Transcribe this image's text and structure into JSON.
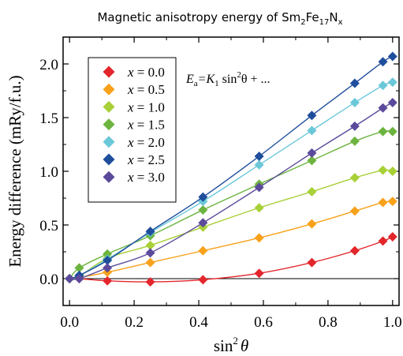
{
  "chart_data": {
    "type": "line",
    "title": {
      "prefix": "Magnetic anisotropy energy of Sm",
      "sub1": "2",
      "mid1": "Fe",
      "sub2": "17",
      "mid2": "N",
      "sub3": "x"
    },
    "xlabel": {
      "main": "sin",
      "sup": "2",
      "var": "θ"
    },
    "ylabel": "Energy difference (mRy/f.u.)",
    "annotation": {
      "lhs": "E",
      "lhs_sub": "a",
      "eq": "=K",
      "k_sub": "1",
      "rhs": " sin",
      "rhs_sup": "2",
      "tail": "θ + ..."
    },
    "xlim": [
      -0.02,
      1.02
    ],
    "ylim": [
      -0.25,
      2.25
    ],
    "xticks": [
      0.0,
      0.2,
      0.4,
      0.6,
      0.8,
      1.0
    ],
    "xtick_labels": [
      "0.0",
      "0.2",
      "0.4",
      "0.6",
      "0.8",
      "1.0"
    ],
    "yticks": [
      0.0,
      0.5,
      1.0,
      1.5,
      2.0
    ],
    "ytick_labels": [
      "0.0",
      "0.5",
      "1.0",
      "1.5",
      "2.0"
    ],
    "grid": false,
    "legend_position": "top-left",
    "zero_line": true,
    "x": [
      0.0,
      0.03,
      0.117,
      0.25,
      0.413,
      0.587,
      0.75,
      0.883,
      0.97,
      1.0
    ],
    "series": [
      {
        "name": "x = 0.0",
        "label_var": "x",
        "label_val": "= 0.0",
        "color": "#e3262b",
        "values": [
          0.0,
          0.0,
          -0.02,
          -0.03,
          -0.01,
          0.05,
          0.15,
          0.26,
          0.35,
          0.39
        ]
      },
      {
        "name": "x = 0.5",
        "label_var": "x",
        "label_val": "= 0.5",
        "color": "#f8a11b",
        "values": [
          0.0,
          0.01,
          0.06,
          0.15,
          0.26,
          0.38,
          0.51,
          0.63,
          0.71,
          0.72
        ]
      },
      {
        "name": "x = 1.0",
        "label_var": "x",
        "label_val": "= 1.0",
        "color": "#a8d037",
        "values": [
          0.0,
          0.02,
          0.19,
          0.31,
          0.48,
          0.66,
          0.81,
          0.94,
          1.01,
          1.0
        ]
      },
      {
        "name": "x = 1.5",
        "label_var": "x",
        "label_val": "= 1.5",
        "color": "#6cb43f",
        "values": [
          0.0,
          0.1,
          0.23,
          0.4,
          0.64,
          0.88,
          1.1,
          1.28,
          1.37,
          1.37
        ]
      },
      {
        "name": "x = 2.0",
        "label_var": "x",
        "label_val": "= 2.0",
        "color": "#6bc8d9",
        "values": [
          0.0,
          0.03,
          0.18,
          0.43,
          0.72,
          1.06,
          1.38,
          1.64,
          1.8,
          1.83
        ]
      },
      {
        "name": "x = 2.5",
        "label_var": "x",
        "label_val": "= 2.5",
        "color": "#1f4e9c",
        "values": [
          0.0,
          0.03,
          0.17,
          0.44,
          0.76,
          1.14,
          1.52,
          1.82,
          2.02,
          2.07
        ]
      },
      {
        "name": "x = 3.0",
        "label_var": "x",
        "label_val": "= 3.0",
        "color": "#5b4a9b",
        "values": [
          0.0,
          0.0,
          0.1,
          0.24,
          0.52,
          0.85,
          1.17,
          1.42,
          1.59,
          1.64
        ]
      }
    ]
  }
}
